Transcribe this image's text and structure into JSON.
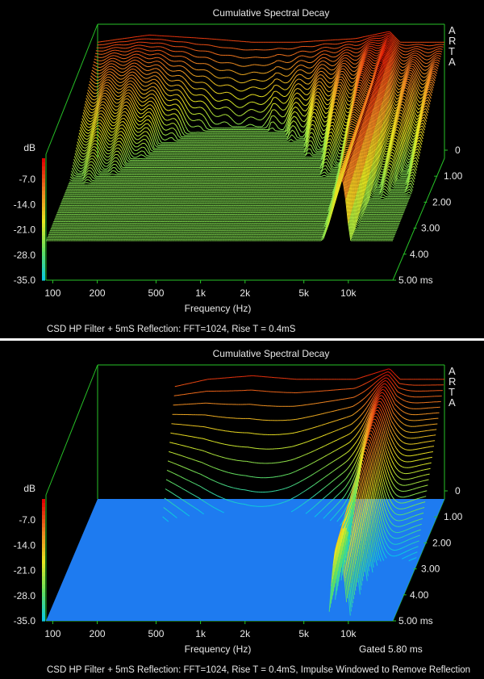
{
  "colors": {
    "background": "#000000",
    "frame": "#27c227",
    "text": "#e8e8e8",
    "floor_bottom": "#1e7bf0",
    "colormap": [
      "#00c8f0",
      "#60e060",
      "#e8e820",
      "#f08020",
      "#e00000"
    ]
  },
  "brand": [
    "A",
    "R",
    "T",
    "A"
  ],
  "chart_data": [
    {
      "type": "waterfall",
      "title": "Cumulative Spectral Decay",
      "xlabel": "Frequency (Hz)",
      "x_ticks": [
        "100",
        "200",
        "500",
        "1k",
        "2k",
        "5k",
        "10k"
      ],
      "x_tick_values": [
        100,
        200,
        500,
        1000,
        2000,
        5000,
        10000
      ],
      "xlim": [
        90,
        20000
      ],
      "y_unit": "dB",
      "y_ticks": [
        "-7.0",
        "-14.0",
        "-21.0",
        "-28.0",
        "-35.0"
      ],
      "y_tick_values": [
        -7,
        -14,
        -21,
        -28,
        -35
      ],
      "ylim": [
        -35,
        0
      ],
      "z_ticks": [
        "0",
        "1.00",
        "2.00",
        "3.00",
        "4.00",
        "5.00 ms"
      ],
      "z_tick_values": [
        0,
        1,
        2,
        3,
        4,
        5
      ],
      "caption": "CSD HP Filter + 5mS Reflection: FFT=1024, Rise T = 0.4mS",
      "gate_label": "",
      "initial_response": [
        [
          90,
          -5
        ],
        [
          200,
          -3
        ],
        [
          500,
          -4
        ],
        [
          1000,
          -5
        ],
        [
          2000,
          -5
        ],
        [
          5000,
          -4
        ],
        [
          8500,
          -2
        ],
        [
          10000,
          -5
        ],
        [
          20000,
          -5
        ]
      ],
      "decay_floor_db": -24,
      "reflection_ripple": true
    },
    {
      "type": "waterfall",
      "title": "Cumulative Spectral Decay",
      "xlabel": "Frequency (Hz)",
      "x_ticks": [
        "100",
        "200",
        "500",
        "1k",
        "2k",
        "5k",
        "10k"
      ],
      "x_tick_values": [
        100,
        200,
        500,
        1000,
        2000,
        5000,
        10000
      ],
      "xlim": [
        90,
        20000
      ],
      "y_unit": "dB",
      "y_ticks": [
        "-7.0",
        "-14.0",
        "-21.0",
        "-28.0",
        "-35.0"
      ],
      "y_tick_values": [
        -7,
        -14,
        -21,
        -28,
        -35
      ],
      "ylim": [
        -35,
        0
      ],
      "z_ticks": [
        "0",
        "1.00",
        "2.00",
        "3.00",
        "4.00",
        "5.00 ms"
      ],
      "z_tick_values": [
        0,
        1,
        2,
        3,
        4,
        5
      ],
      "caption": "CSD HP Filter + 5mS Reflection: FFT=1024, Rise T = 0.4mS, Impulse Windowed to Remove Reflection",
      "gate_label": "Gated 5.80 ms",
      "initial_response": [
        [
          300,
          -6
        ],
        [
          500,
          -4
        ],
        [
          1000,
          -3
        ],
        [
          2000,
          -4
        ],
        [
          5000,
          -4
        ],
        [
          8500,
          -1
        ],
        [
          10000,
          -4
        ],
        [
          20000,
          -4
        ]
      ],
      "decay_floor_db": -35,
      "reflection_ripple": false
    }
  ]
}
